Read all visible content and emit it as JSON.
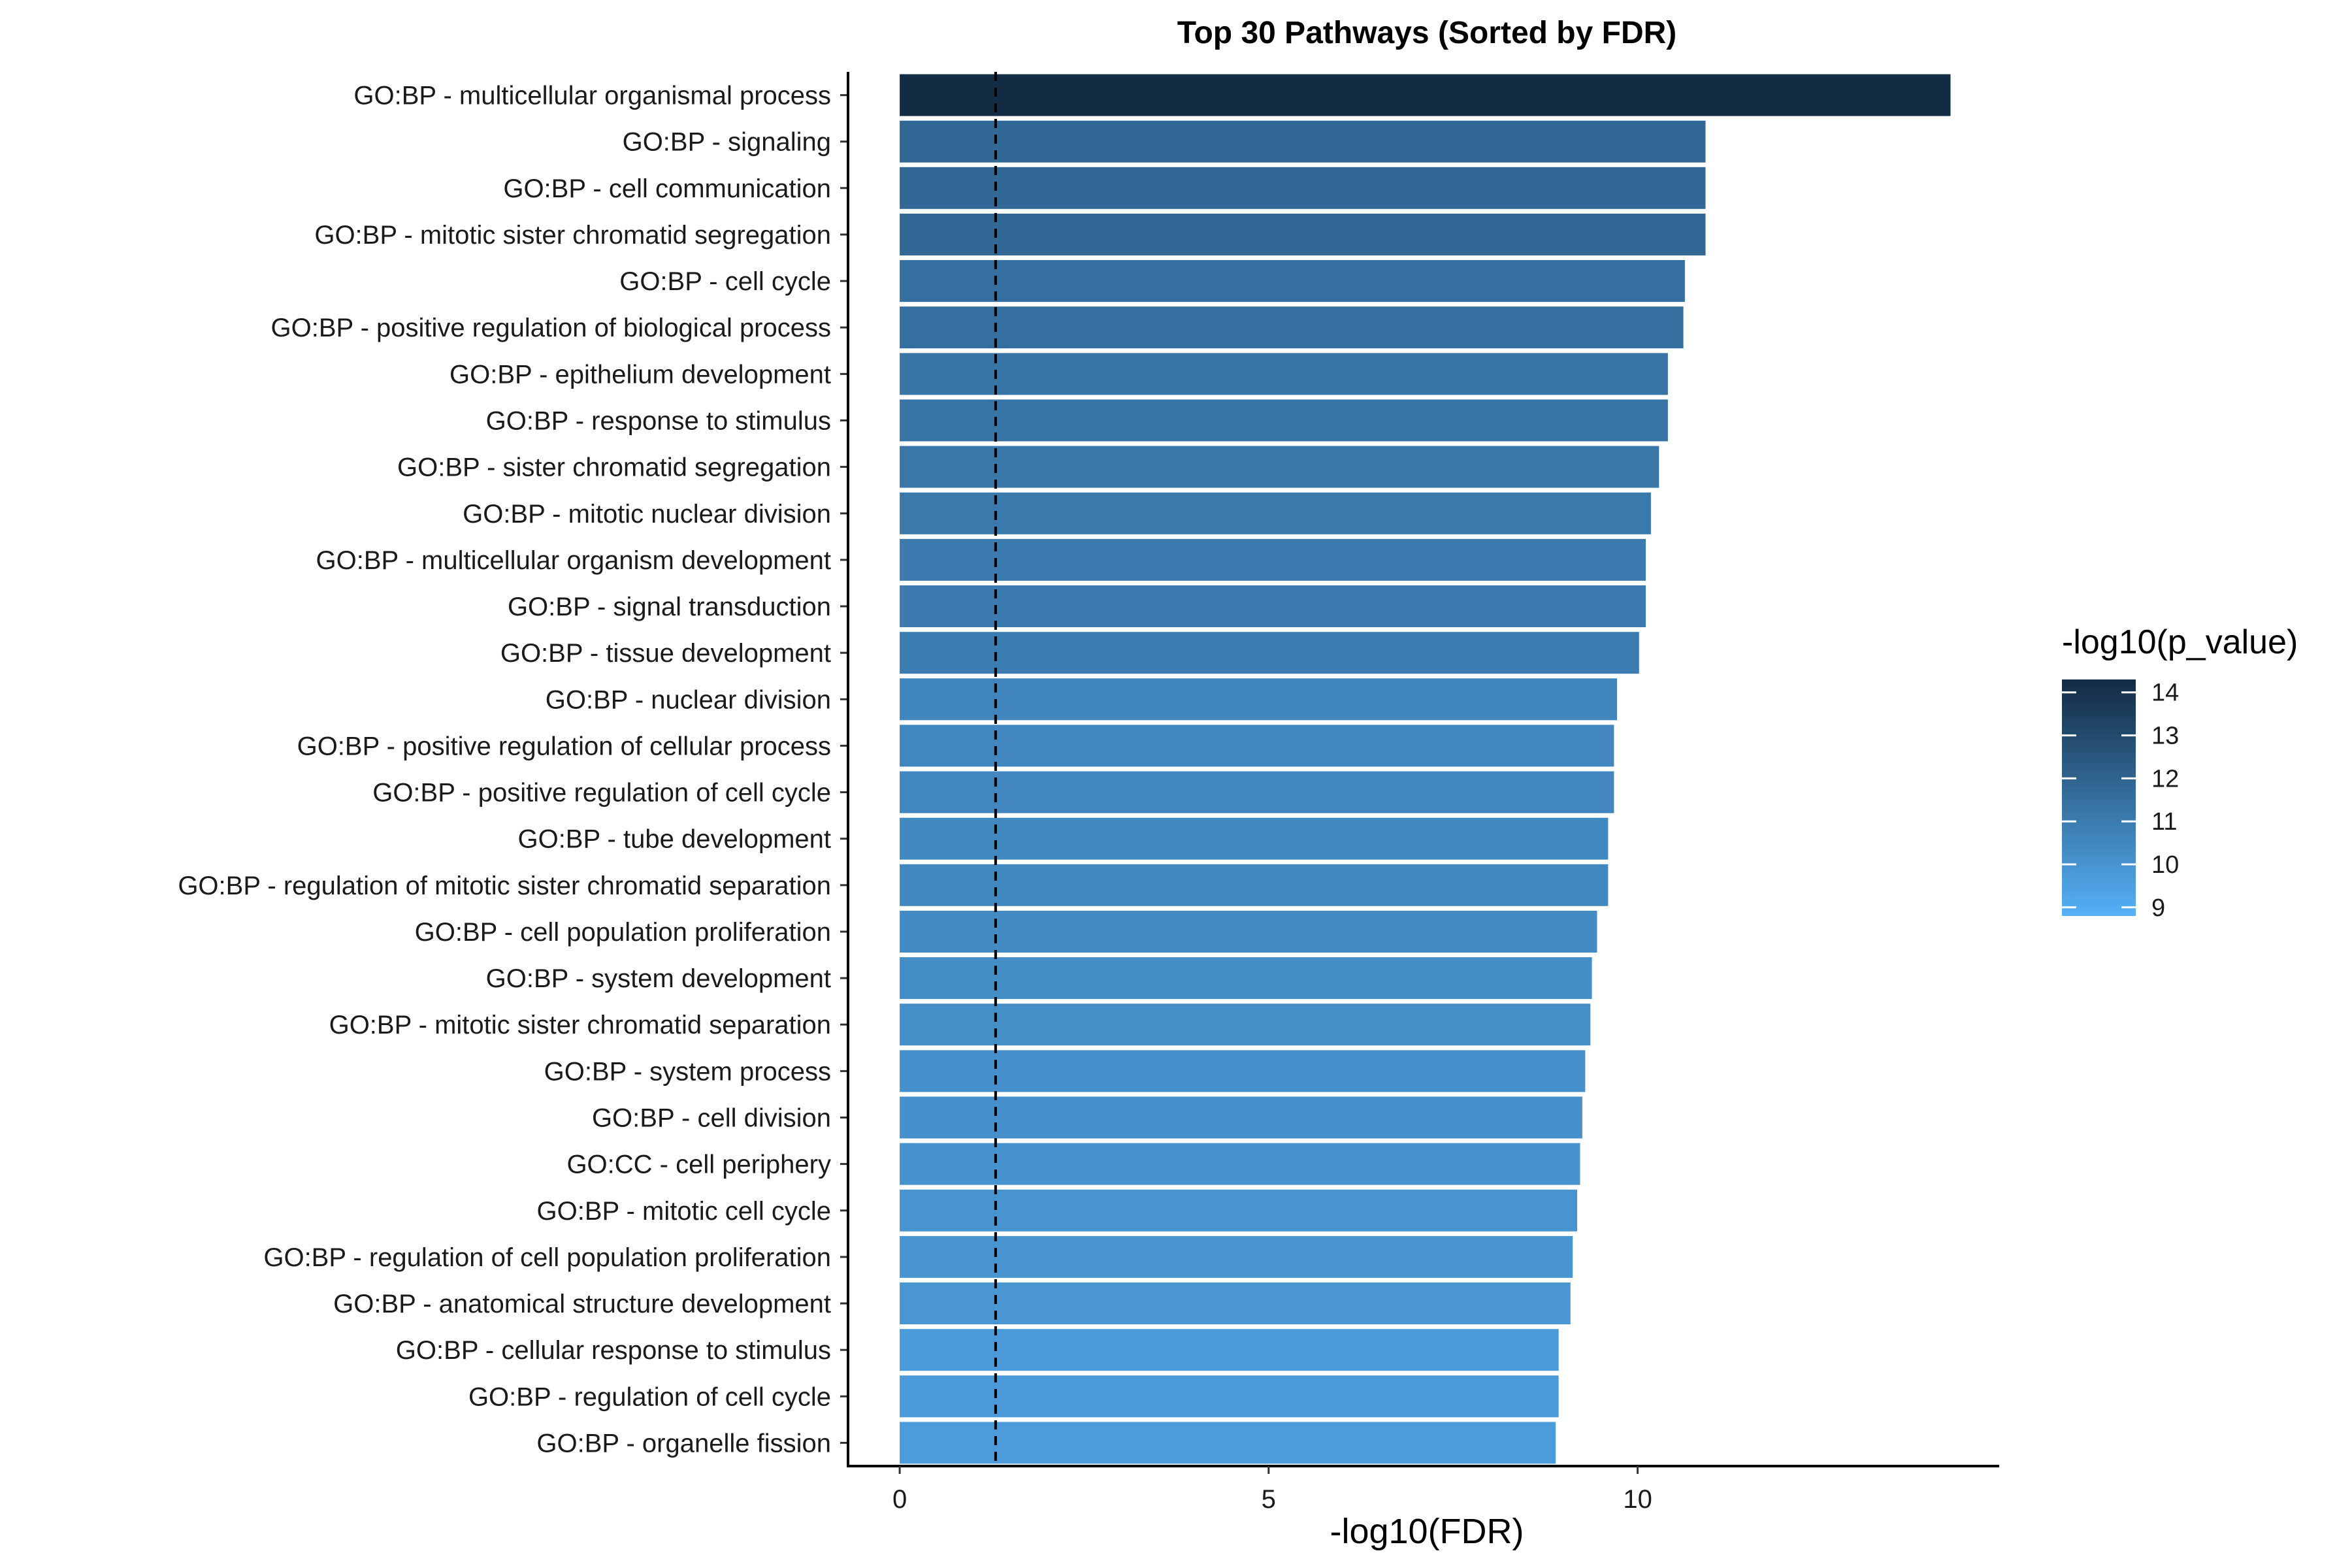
{
  "chart_data": {
    "type": "bar",
    "orientation": "horizontal",
    "title": "Top 30 Pathways (Sorted by FDR)",
    "xlabel": "-log10(FDR)",
    "ylabel": "",
    "xlim": [
      -0.7,
      14.9
    ],
    "xticks": [
      0,
      5,
      10
    ],
    "reference_line": {
      "x": 1.3,
      "style": "dashed",
      "color": "#000000"
    },
    "grid": false,
    "legend": {
      "title": "-log10(p_value)",
      "placement": "right",
      "ticks": [
        9,
        10,
        11,
        12,
        13,
        14
      ],
      "range": [
        8.8,
        14.3
      ],
      "color_low": "#56B1F7",
      "color_high": "#132B43"
    },
    "categories": [
      "GO:BP - multicellular organismal process",
      "GO:BP - signaling",
      "GO:BP - cell communication",
      "GO:BP - mitotic sister chromatid segregation",
      "GO:BP - cell cycle",
      "GO:BP - positive regulation of biological process",
      "GO:BP - epithelium development",
      "GO:BP - response to stimulus",
      "GO:BP - sister chromatid segregation",
      "GO:BP - mitotic nuclear division",
      "GO:BP - multicellular organism development",
      "GO:BP - signal transduction",
      "GO:BP - tissue development",
      "GO:BP - nuclear division",
      "GO:BP - positive regulation of cellular process",
      "GO:BP - positive regulation of cell cycle",
      "GO:BP - tube development",
      "GO:BP - regulation of mitotic sister chromatid separation",
      "GO:BP - cell population proliferation",
      "GO:BP - system development",
      "GO:BP - mitotic sister chromatid separation",
      "GO:BP - system process",
      "GO:BP - cell division",
      "GO:CC - cell periphery",
      "GO:BP - mitotic cell cycle",
      "GO:BP - regulation of cell population proliferation",
      "GO:BP - anatomical structure development",
      "GO:BP - cellular response to stimulus",
      "GO:BP - regulation of cell cycle",
      "GO:BP - organelle fission"
    ],
    "values": [
      14.24,
      10.92,
      10.92,
      10.92,
      10.64,
      10.62,
      10.41,
      10.41,
      10.29,
      10.18,
      10.11,
      10.11,
      10.02,
      9.72,
      9.68,
      9.68,
      9.6,
      9.6,
      9.45,
      9.38,
      9.36,
      9.29,
      9.25,
      9.22,
      9.18,
      9.12,
      9.09,
      8.93,
      8.93,
      8.89
    ],
    "color_values": [
      14.3,
      11.8,
      11.8,
      11.8,
      11.5,
      11.5,
      11.3,
      11.3,
      11.2,
      11.1,
      11.0,
      11.0,
      10.95,
      10.6,
      10.55,
      10.55,
      10.5,
      10.5,
      10.35,
      10.25,
      10.2,
      10.15,
      10.1,
      10.05,
      10.0,
      9.95,
      9.9,
      9.7,
      9.7,
      9.65
    ]
  }
}
